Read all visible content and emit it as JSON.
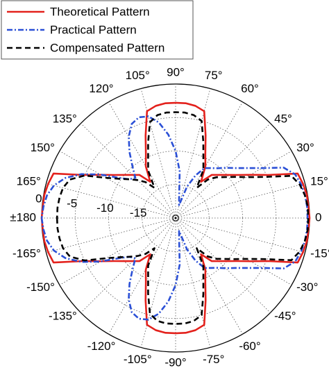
{
  "chart_data": {
    "type": "polar",
    "theta": [
      -180,
      -175,
      -170,
      -165,
      -160,
      -155,
      -150,
      -145,
      -140,
      -135,
      -130,
      -125,
      -120,
      -115,
      -110,
      -105,
      -100,
      -95,
      -90,
      -85,
      -80,
      -75,
      -70,
      -65,
      -60,
      -55,
      -50,
      -45,
      -40,
      -35,
      -30,
      -25,
      -20,
      -15,
      -10,
      -5,
      0,
      5,
      10,
      15,
      20,
      25,
      30,
      35,
      40,
      45,
      50,
      55,
      60,
      65,
      70,
      75,
      80,
      85,
      90,
      95,
      100,
      105,
      110,
      115,
      120,
      125,
      130,
      135,
      140,
      145,
      150,
      155,
      160,
      165,
      170,
      175,
      180
    ],
    "series": [
      {
        "name": "Theoretical Pattern",
        "color": "#e3211c",
        "dash": "solid",
        "values": [
          0,
          -0.1,
          -0.1,
          -0.3,
          -0.6,
          -4.8,
          -7.1,
          -8.8,
          -10,
          -10.9,
          -11.6,
          -13.4,
          -11.1,
          -9.5,
          -6.9,
          -3.5,
          -3.0,
          -2.8,
          -2.8,
          -2.8,
          -3.0,
          -3.5,
          -6.9,
          -9.5,
          -11.1,
          -13.4,
          -11.6,
          -10.9,
          -10,
          -8.8,
          -7.1,
          -4.8,
          -0.6,
          -0.3,
          -0.1,
          -0.1,
          0,
          -0.1,
          -0.1,
          -0.3,
          -0.6,
          -4.8,
          -7.1,
          -8.8,
          -10,
          -10.9,
          -11.6,
          -13.4,
          -11.1,
          -9.5,
          -6.9,
          -3.5,
          -3.0,
          -2.8,
          -2.8,
          -2.8,
          -3.0,
          -3.5,
          -6.9,
          -9.5,
          -11.1,
          -13.4,
          -11.6,
          -10.9,
          -10,
          -8.8,
          -7.1,
          -4.8,
          -0.6,
          -0.3,
          -0.1,
          -0.1,
          0
        ]
      },
      {
        "name": "Practical Pattern",
        "color": "#2a4fd6",
        "dash": "dashdot",
        "values": [
          0,
          -0.2,
          -0.5,
          -1.2,
          -2.5,
          -4.5,
          -7,
          -9.5,
          -11,
          -11.5,
          -10,
          -8,
          -6,
          -4.5,
          -4.0,
          -4.3,
          -5.5,
          -7.5,
          -10,
          -13,
          -17,
          -18,
          -15,
          -13,
          -11.4,
          -10.9,
          -10.3,
          -9.4,
          -8.4,
          -7.0,
          -5.1,
          -2.2,
          -1.0,
          -0.6,
          -0.4,
          -0.3,
          -0.3,
          -0.3,
          -0.4,
          -0.6,
          -1.0,
          -2.2,
          -5.1,
          -7.0,
          -8.4,
          -9.4,
          -10.3,
          -10.9,
          -11.4,
          -13,
          -15,
          -18,
          -17,
          -13,
          -10,
          -7.5,
          -5.5,
          -4.3,
          -4.0,
          -4.5,
          -6,
          -8,
          -10,
          -11.5,
          -11,
          -9.5,
          -7,
          -4.5,
          -2.5,
          -1.2,
          -0.5,
          -0.2,
          0
        ]
      },
      {
        "name": "Compensated Pattern",
        "color": "#000000",
        "dash": "dashed",
        "values": [
          -2.3,
          -2.3,
          -2.4,
          -2.6,
          -3.2,
          -5,
          -8,
          -9.8,
          -11,
          -12,
          -13,
          -14.5,
          -11.8,
          -10.3,
          -8,
          -5.2,
          -4.4,
          -4.2,
          -4.2,
          -4.2,
          -4.4,
          -5.0,
          -7.9,
          -10.2,
          -11.7,
          -14.5,
          -12.5,
          -11.4,
          -10.5,
          -9.3,
          -7.8,
          -5.5,
          -1.6,
          -0.8,
          -0.4,
          -0.2,
          -0.2,
          -0.2,
          -0.4,
          -0.8,
          -1.6,
          -5.5,
          -7.8,
          -9.3,
          -10.5,
          -11.4,
          -12.5,
          -14.5,
          -11.7,
          -10.2,
          -7.9,
          -5.0,
          -4.4,
          -4.2,
          -4.2,
          -4.2,
          -4.4,
          -5.2,
          -8,
          -10.3,
          -11.8,
          -14.5,
          -13,
          -12,
          -11,
          -9.8,
          -8,
          -5,
          -3.2,
          -2.6,
          -2.4,
          -2.3,
          -2.3
        ]
      }
    ],
    "rlim": [
      -20,
      0
    ],
    "rticks": [
      0,
      -5,
      -10,
      -15
    ],
    "thetaticks": [
      {
        "value": 0,
        "label": "0"
      },
      {
        "value": 15,
        "label": "15°"
      },
      {
        "value": 30,
        "label": "30°"
      },
      {
        "value": 45,
        "label": "45°"
      },
      {
        "value": 60,
        "label": "60°"
      },
      {
        "value": 75,
        "label": "75°"
      },
      {
        "value": 90,
        "label": "90°"
      },
      {
        "value": 105,
        "label": "105°"
      },
      {
        "value": 120,
        "label": "120°"
      },
      {
        "value": 135,
        "label": "135°"
      },
      {
        "value": 150,
        "label": "150°"
      },
      {
        "value": 165,
        "label": "165°"
      },
      {
        "value": 180,
        "label": "±180"
      },
      {
        "value": -165,
        "label": "-165°"
      },
      {
        "value": -150,
        "label": "-150°"
      },
      {
        "value": -135,
        "label": "-135°"
      },
      {
        "value": -120,
        "label": "-120°"
      },
      {
        "value": -105,
        "label": "-105°"
      },
      {
        "value": -90,
        "label": "-90°"
      },
      {
        "value": -75,
        "label": "-75°"
      },
      {
        "value": -60,
        "label": "-60°"
      },
      {
        "value": -45,
        "label": "-45°"
      },
      {
        "value": -30,
        "label": "-30°"
      },
      {
        "value": -15,
        "label": "-15°"
      }
    ],
    "grid": true,
    "legend": "upper left"
  }
}
